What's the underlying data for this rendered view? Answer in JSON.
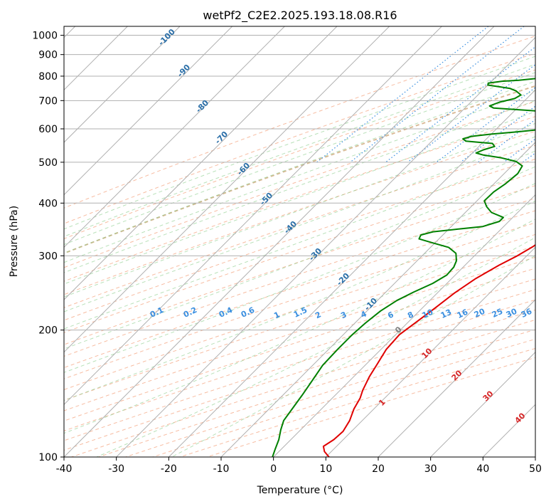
{
  "chart_data": {
    "type": "line",
    "title": "wetPf2_C2E2.2025.193.18.08.R16",
    "xlabel": "Temperature (°C)",
    "ylabel": "Pressure (hPa)",
    "xlim": [
      -40,
      50
    ],
    "ylim": [
      1050,
      100
    ],
    "y_scale": "log",
    "grid": true,
    "x_ticks": [
      "-40",
      "-30",
      "-20",
      "-10",
      "0",
      "10",
      "20",
      "30",
      "40",
      "50"
    ],
    "y_ticks": [
      "100",
      "200",
      "300",
      "400",
      "500",
      "600",
      "700",
      "800",
      "900",
      "1000"
    ],
    "series": [
      {
        "name": "",
        "color": "#e00000",
        "points": [
          [
            20.5,
            800
          ],
          [
            20.2,
            790
          ],
          [
            21.5,
            780
          ],
          [
            22.6,
            765
          ],
          [
            23.2,
            740
          ],
          [
            23.4,
            700
          ],
          [
            23.2,
            672
          ],
          [
            22.2,
            650
          ],
          [
            20.8,
            625
          ],
          [
            20.3,
            600
          ],
          [
            20.2,
            575
          ],
          [
            19.8,
            550
          ],
          [
            19.3,
            530
          ],
          [
            18.7,
            510
          ],
          [
            17.6,
            495
          ],
          [
            16.3,
            470
          ],
          [
            15.1,
            440
          ],
          [
            13.7,
            410
          ],
          [
            12.4,
            380
          ],
          [
            11.3,
            355
          ],
          [
            10.4,
            335
          ],
          [
            9.4,
            315
          ],
          [
            8.2,
            300
          ],
          [
            6.5,
            285
          ],
          [
            4.6,
            265
          ],
          [
            3.3,
            245
          ],
          [
            2.4,
            225
          ],
          [
            1.6,
            210
          ],
          [
            0.7,
            195
          ],
          [
            1.0,
            180
          ],
          [
            2.1,
            166
          ],
          [
            3.0,
            155
          ],
          [
            4.3,
            144
          ],
          [
            5.3,
            138
          ],
          [
            6.2,
            130
          ],
          [
            7.6,
            122
          ],
          [
            8.4,
            115
          ],
          [
            8.2,
            110
          ],
          [
            7.5,
            106
          ],
          [
            8.7,
            103
          ],
          [
            10.6,
            100
          ]
        ]
      },
      {
        "name": "",
        "color": "#008000",
        "points": [
          [
            -21.1,
            795
          ],
          [
            -22.3,
            789
          ],
          [
            -25.0,
            782
          ],
          [
            -28.0,
            778
          ],
          [
            -30.3,
            770
          ],
          [
            -30.0,
            762
          ],
          [
            -27.5,
            755
          ],
          [
            -25.1,
            748
          ],
          [
            -23.5,
            738
          ],
          [
            -21.8,
            722
          ],
          [
            -22.3,
            708
          ],
          [
            -24.5,
            694
          ],
          [
            -25.7,
            680
          ],
          [
            -24.5,
            672
          ],
          [
            -19.5,
            666
          ],
          [
            -13.0,
            658
          ],
          [
            -10.0,
            645
          ],
          [
            -8.7,
            630
          ],
          [
            -8.6,
            615
          ],
          [
            -10.5,
            600
          ],
          [
            -15.5,
            590
          ],
          [
            -20.0,
            583
          ],
          [
            -23.3,
            576
          ],
          [
            -24.5,
            568
          ],
          [
            -23.5,
            561
          ],
          [
            -20.4,
            557
          ],
          [
            -18.0,
            554
          ],
          [
            -17.0,
            545
          ],
          [
            -18.5,
            535
          ],
          [
            -19.3,
            526
          ],
          [
            -17.5,
            520
          ],
          [
            -13.5,
            512
          ],
          [
            -10.0,
            502
          ],
          [
            -8.0,
            490
          ],
          [
            -7.4,
            470
          ],
          [
            -7.8,
            445
          ],
          [
            -8.5,
            425
          ],
          [
            -8.6,
            405
          ],
          [
            -7.0,
            392
          ],
          [
            -5.0,
            380
          ],
          [
            -1.8,
            370
          ],
          [
            -1.8,
            362
          ],
          [
            -4.0,
            352
          ],
          [
            -8.3,
            347
          ],
          [
            -12.5,
            342
          ],
          [
            -14.2,
            336
          ],
          [
            -13.8,
            329
          ],
          [
            -10.5,
            322
          ],
          [
            -6.5,
            314
          ],
          [
            -4.0,
            304
          ],
          [
            -2.5,
            292
          ],
          [
            -1.8,
            282
          ],
          [
            -1.6,
            270
          ],
          [
            -2.7,
            258
          ],
          [
            -4.7,
            246
          ],
          [
            -6.3,
            235
          ],
          [
            -7.4,
            222
          ],
          [
            -8.0,
            208
          ],
          [
            -8.3,
            195
          ],
          [
            -8.3,
            180
          ],
          [
            -8.1,
            165
          ],
          [
            -7.2,
            152
          ],
          [
            -6.3,
            140
          ],
          [
            -5.6,
            130
          ],
          [
            -5.0,
            122
          ],
          [
            -3.8,
            116
          ],
          [
            -2.3,
            110
          ],
          [
            -1.1,
            104
          ],
          [
            -0.2,
            100
          ]
        ]
      }
    ],
    "annotations": {
      "dry_adiabat_labels": [
        "-100",
        "-90",
        "-80",
        "-70",
        "-60",
        "-50",
        "-40",
        "-30",
        "-20",
        "-10",
        "0"
      ],
      "mixing_ratio_labels": [
        "0.1",
        "0.2",
        "0.4",
        "0.6",
        "1",
        "1.5",
        "2",
        "3",
        "4",
        "6",
        "8",
        "10",
        "13",
        "16",
        "20",
        "25",
        "30",
        "36"
      ],
      "moist_adiabat_labels": [
        "1",
        "10",
        "20",
        "30",
        "40"
      ]
    }
  }
}
